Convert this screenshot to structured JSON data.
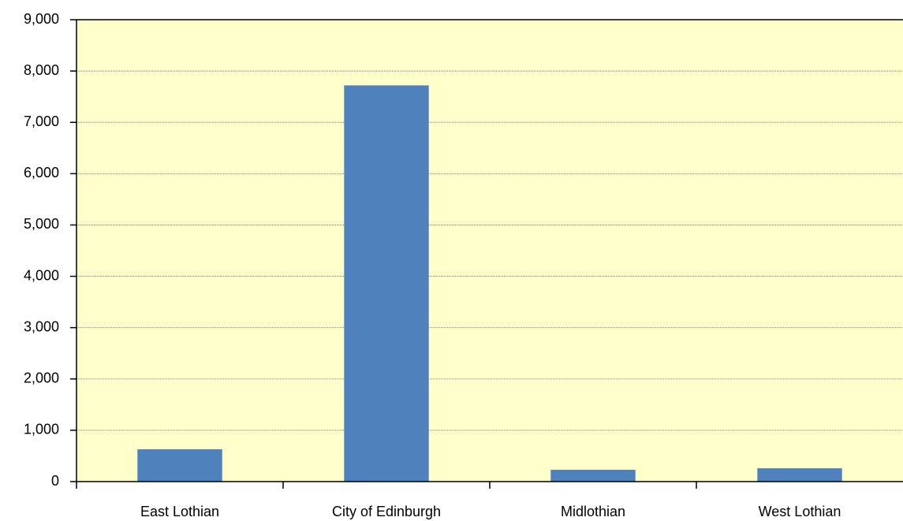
{
  "chart_data": {
    "type": "bar",
    "categories": [
      "East Lothian",
      "City of Edinburgh",
      "Midlothian",
      "West Lothian"
    ],
    "values": [
      630,
      7720,
      230,
      260
    ],
    "color": "#4f81bd",
    "ylim": [
      0,
      9000
    ],
    "yticks": [
      0,
      {
        "value": 1000,
        "label": "1,000"
      },
      {
        "value": 2000,
        "label": "2,000"
      },
      {
        "value": 3000,
        "label": "3,000"
      },
      {
        "value": 4000,
        "label": "4,000"
      },
      {
        "value": 5000,
        "label": "5,000"
      },
      {
        "value": 6000,
        "label": "6,000"
      },
      {
        "value": 7000,
        "label": "7,000"
      },
      {
        "value": 8000,
        "label": "8,000"
      },
      {
        "value": 9000,
        "label": "9,000"
      }
    ],
    "grid": true
  }
}
